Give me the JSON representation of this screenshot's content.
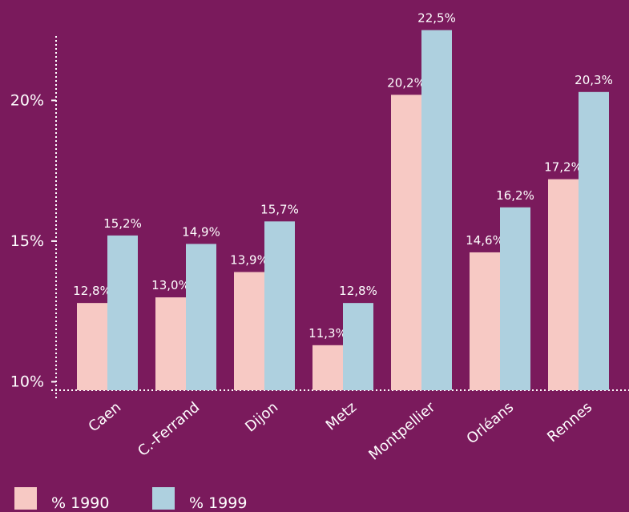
{
  "chart_data": {
    "type": "bar",
    "categories": [
      "Caen",
      "C.-Ferrand",
      "Dijon",
      "Metz",
      "Montpellier",
      "Orléans",
      "Rennes"
    ],
    "series": [
      {
        "name": "% 1990",
        "color": "#f7c9c4",
        "values": [
          12.8,
          13.0,
          13.9,
          11.3,
          20.2,
          14.6,
          17.2
        ],
        "value_labels": [
          "12,8%",
          "13,0%",
          "13,9%",
          "11,3%",
          "20,2%",
          "14,6%",
          "17,2%"
        ]
      },
      {
        "name": "% 1999",
        "color": "#aed0df",
        "values": [
          15.2,
          14.9,
          15.7,
          12.8,
          22.5,
          16.2,
          20.3
        ],
        "value_labels": [
          "15,2%",
          "14,9%",
          "15,7%",
          "12,8%",
          "22,5%",
          "16,2%",
          "20,3%"
        ]
      }
    ],
    "ylim": [
      9.7,
      23
    ],
    "yticks": [
      {
        "value": 10,
        "label": "10%"
      },
      {
        "value": 15,
        "label": "15%"
      },
      {
        "value": 20,
        "label": "20%"
      }
    ]
  }
}
